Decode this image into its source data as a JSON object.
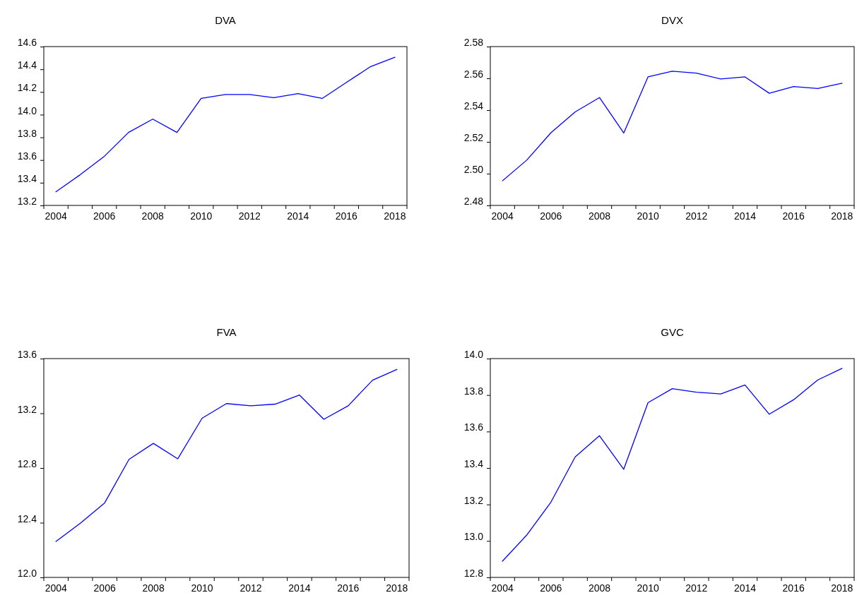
{
  "chart_data": [
    {
      "type": "line",
      "title": "DVA",
      "categories": [
        "2004",
        null,
        "2006",
        null,
        "2008",
        null,
        "2010",
        null,
        "2012",
        null,
        "2014",
        null,
        "2016",
        null,
        "2018"
      ],
      "series": [
        {
          "color": "#0000ff",
          "values": [
            13.32,
            13.47,
            13.633,
            13.843,
            13.961,
            13.843,
            14.143,
            14.178,
            14.178,
            14.15,
            14.185,
            14.143,
            14.284,
            14.424,
            14.506
          ]
        }
      ],
      "ylim": [
        13.2,
        14.6
      ],
      "yticks": [
        13.2,
        13.4,
        13.6,
        13.8,
        {
          "value": 14,
          "label": "14.0"
        },
        14.2,
        14.4,
        14.6
      ]
    },
    {
      "type": "line",
      "title": "DVX",
      "categories": [
        "2004",
        null,
        "2006",
        null,
        "2008",
        null,
        "2010",
        null,
        "2012",
        null,
        "2014",
        null,
        "2016",
        null,
        "2018"
      ],
      "series": [
        {
          "color": "#0000ff",
          "values": [
            2.4955,
            2.5085,
            2.5258,
            2.5389,
            2.5479,
            2.5256,
            2.5609,
            2.5645,
            2.5633,
            2.5596,
            2.5609,
            2.5506,
            2.5548,
            2.5536,
            2.5569
          ]
        }
      ],
      "ylim": [
        2.48,
        2.58
      ],
      "yticks": [
        2.48,
        {
          "value": 2.5,
          "label": "2.50"
        },
        2.52,
        2.54,
        2.56,
        2.58
      ]
    },
    {
      "type": "line",
      "title": "FVA",
      "categories": [
        "2004",
        null,
        "2006",
        null,
        "2008",
        null,
        "2010",
        null,
        "2012",
        null,
        "2014",
        null,
        "2016",
        null,
        "2018"
      ],
      "series": [
        {
          "color": "#0000ff",
          "values": [
            12.263,
            12.396,
            12.545,
            12.863,
            12.98,
            12.867,
            13.164,
            13.271,
            13.255,
            13.267,
            13.333,
            13.156,
            13.255,
            13.442,
            13.521
          ]
        }
      ],
      "ylim": [
        12.0,
        13.6
      ],
      "yticks": [
        {
          "value": 12,
          "label": "12.0"
        },
        12.4,
        12.8,
        13.2,
        13.6
      ]
    },
    {
      "type": "line",
      "title": "GVC",
      "categories": [
        "2004",
        null,
        "2006",
        null,
        "2008",
        null,
        "2010",
        null,
        "2012",
        null,
        "2014",
        null,
        "2016",
        null,
        "2018"
      ],
      "series": [
        {
          "color": "#0000ff",
          "values": [
            12.889,
            13.032,
            13.213,
            13.461,
            13.577,
            13.393,
            13.758,
            13.835,
            13.816,
            13.806,
            13.855,
            13.695,
            13.774,
            13.883,
            13.946
          ]
        }
      ],
      "ylim": [
        12.8,
        14.0
      ],
      "yticks": [
        12.8,
        {
          "value": 13,
          "label": "13.0"
        },
        13.2,
        13.4,
        13.6,
        13.8,
        {
          "value": 14,
          "label": "14.0"
        }
      ]
    }
  ]
}
